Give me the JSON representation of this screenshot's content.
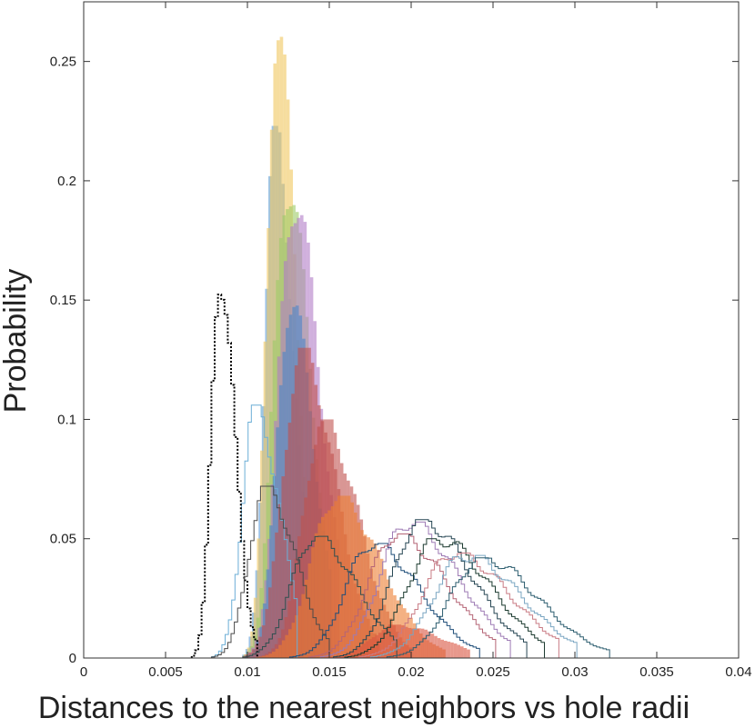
{
  "chart_data": {
    "type": "histogram",
    "title": "",
    "xlabel": "Distances to the nearest neighbors vs hole radii",
    "ylabel": "Probability",
    "xlim": [
      0,
      0.04
    ],
    "ylim": [
      0,
      0.275
    ],
    "x_ticks": [
      "0",
      "0.005",
      "0.01",
      "0.015",
      "0.02",
      "0.025",
      "0.03",
      "0.035",
      "0.04"
    ],
    "y_ticks": [
      "0",
      "0.05",
      "0.1",
      "0.15",
      "0.2",
      "0.25"
    ],
    "grid": false,
    "legend": "none",
    "series": [
      {
        "style": "filled",
        "color": "#5b9bd5",
        "peak_x": 0.0116,
        "peak_y": 0.223,
        "spread": 0.0006,
        "tail_to": 0.013
      },
      {
        "style": "filled",
        "color": "#f0c75e",
        "peak_x": 0.0117,
        "peak_y": 0.27,
        "spread": 0.0006,
        "tail_to": 0.0135
      },
      {
        "style": "filled",
        "color": "#9ccc65",
        "peak_x": 0.0123,
        "peak_y": 0.2,
        "spread": 0.0008,
        "tail_to": 0.0145
      },
      {
        "style": "filled",
        "color": "#b07cc6",
        "peak_x": 0.0127,
        "peak_y": 0.193,
        "spread": 0.0009,
        "tail_to": 0.0155
      },
      {
        "style": "filled",
        "color": "#4a86c8",
        "peak_x": 0.0125,
        "peak_y": 0.15,
        "spread": 0.0008,
        "tail_to": 0.015
      },
      {
        "style": "filled",
        "color": "#c0504d",
        "peak_x": 0.0132,
        "peak_y": 0.13,
        "spread": 0.0011,
        "tail_to": 0.018
      },
      {
        "style": "filled",
        "color": "#c0504d",
        "peak_x": 0.0145,
        "peak_y": 0.1,
        "spread": 0.0012,
        "tail_to": 0.02
      },
      {
        "style": "filled",
        "color": "#ed7d31",
        "peak_x": 0.0153,
        "peak_y": 0.068,
        "spread": 0.0015,
        "tail_to": 0.022
      },
      {
        "style": "filled",
        "color": "#d9533f",
        "peak_x": 0.019,
        "peak_y": 0.014,
        "spread": 0.0015,
        "tail_to": 0.023
      },
      {
        "style": "outline",
        "color": "#6baed6",
        "peak_x": 0.0104,
        "peak_y": 0.106,
        "spread": 0.0008,
        "tail_to": 0.013
      },
      {
        "style": "outline",
        "color": "#000000",
        "dashed": true,
        "peak_x": 0.0082,
        "peak_y": 0.162,
        "spread": 0.0005,
        "tail_to": 0.0105
      },
      {
        "style": "outline",
        "color": "#4a4a4a",
        "peak_x": 0.011,
        "peak_y": 0.072,
        "spread": 0.001,
        "tail_to": 0.015
      },
      {
        "style": "outline",
        "color": "#2f4f4f",
        "peak_x": 0.014,
        "peak_y": 0.051,
        "spread": 0.0014,
        "tail_to": 0.019
      },
      {
        "style": "outline",
        "color": "#1f4e79",
        "peak_x": 0.0175,
        "peak_y": 0.048,
        "spread": 0.0016,
        "tail_to": 0.024
      },
      {
        "style": "outline",
        "color": "#b56576",
        "peak_x": 0.019,
        "peak_y": 0.052,
        "spread": 0.0017,
        "tail_to": 0.025
      },
      {
        "style": "outline",
        "color": "#9e7bb5",
        "peak_x": 0.0197,
        "peak_y": 0.057,
        "spread": 0.0017,
        "tail_to": 0.026
      },
      {
        "style": "outline",
        "color": "#264653",
        "peak_x": 0.0205,
        "peak_y": 0.058,
        "spread": 0.0017,
        "tail_to": 0.027
      },
      {
        "style": "outline",
        "color": "#1b3a2f",
        "peak_x": 0.0215,
        "peak_y": 0.05,
        "spread": 0.0018,
        "tail_to": 0.028
      },
      {
        "style": "outline",
        "color": "#c97b84",
        "peak_x": 0.0225,
        "peak_y": 0.044,
        "spread": 0.0019,
        "tail_to": 0.029
      },
      {
        "style": "outline",
        "color": "#7aa6c2",
        "peak_x": 0.0232,
        "peak_y": 0.043,
        "spread": 0.0019,
        "tail_to": 0.03
      },
      {
        "style": "outline",
        "color": "#2c5d6f",
        "peak_x": 0.0242,
        "peak_y": 0.042,
        "spread": 0.0019,
        "tail_to": 0.032
      }
    ]
  }
}
